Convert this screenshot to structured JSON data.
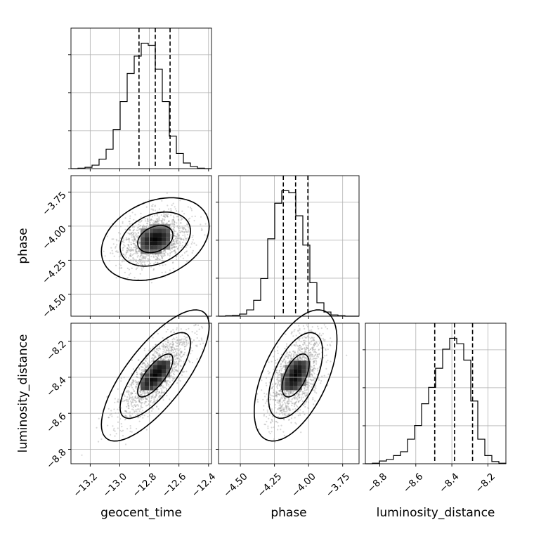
{
  "chart_data": {
    "type": "corner",
    "parameters": [
      "geocent_time",
      "phase",
      "luminosity_distance"
    ],
    "ranges": {
      "geocent_time": [
        -13.33,
        -12.38
      ],
      "phase": [
        -4.66,
        -3.63
      ],
      "luminosity_distance": [
        -8.88,
        -8.1
      ]
    },
    "ticks": {
      "geocent_time": [
        -13.2,
        -13.0,
        -12.8,
        -12.6,
        -12.4
      ],
      "phase": [
        -4.5,
        -4.25,
        -4.0,
        -3.75
      ],
      "luminosity_distance": [
        -8.8,
        -8.6,
        -8.4,
        -8.2
      ]
    },
    "tick_labels": {
      "geocent_time": [
        "−13.2",
        "−13.0",
        "−12.8",
        "−12.6",
        "−12.4"
      ],
      "phase": [
        "−4.50",
        "−4.25",
        "−4.00",
        "−3.75"
      ],
      "luminosity_distance": [
        "−8.8",
        "−8.6",
        "−8.4",
        "−8.2"
      ]
    },
    "quantiles": {
      "geocent_time": [
        -12.87,
        -12.76,
        -12.66
      ],
      "phase": [
        -4.185,
        -4.095,
        -4.005
      ],
      "luminosity_distance": [
        -8.495,
        -8.385,
        -8.285
      ]
    },
    "histograms": {
      "geocent_time": {
        "edges": [
          -13.33,
          -13.2825,
          -13.235,
          -13.1875,
          -13.14,
          -13.0925,
          -13.045,
          -12.9975,
          -12.95,
          -12.9025,
          -12.855,
          -12.8075,
          -12.76,
          -12.7125,
          -12.665,
          -12.6175,
          -12.57,
          -12.5225,
          -12.475,
          -12.4275,
          -12.38
        ],
        "counts": [
          0,
          1,
          3,
          8,
          22,
          45,
          90,
          155,
          220,
          260,
          290,
          285,
          230,
          155,
          75,
          35,
          13,
          5,
          1,
          0
        ]
      },
      "phase": {
        "edges": [
          -4.66,
          -4.6085,
          -4.557,
          -4.5055,
          -4.454,
          -4.4025,
          -4.351,
          -4.2995,
          -4.248,
          -4.1965,
          -4.145,
          -4.0935,
          -4.042,
          -3.9905,
          -3.939,
          -3.8875,
          -3.836,
          -3.7845,
          -3.733,
          -3.6815,
          -3.63
        ],
        "counts": [
          0,
          1,
          2,
          5,
          15,
          38,
          90,
          185,
          270,
          300,
          295,
          240,
          170,
          80,
          32,
          10,
          3,
          1,
          0,
          0
        ]
      },
      "luminosity_distance": {
        "edges": [
          -8.88,
          -8.841,
          -8.802,
          -8.763,
          -8.724,
          -8.685,
          -8.646,
          -8.607,
          -8.568,
          -8.529,
          -8.49,
          -8.451,
          -8.412,
          -8.373,
          -8.334,
          -8.295,
          -8.256,
          -8.217,
          -8.178,
          -8.139,
          -8.1
        ],
        "counts": [
          0,
          1,
          5,
          8,
          15,
          22,
          45,
          70,
          110,
          140,
          175,
          210,
          230,
          220,
          190,
          115,
          45,
          15,
          4,
          1
        ]
      }
    },
    "posterior_2d": {
      "phase_vs_geocent_time": {
        "mean": [
          -12.76,
          -4.095
        ],
        "sd": [
          0.12,
          0.1
        ],
        "rho": 0.3
      },
      "luminosity_distance_vs_geocent_time": {
        "mean": [
          -12.76,
          -8.39
        ],
        "sd": [
          0.12,
          0.12
        ],
        "rho": 0.75
      },
      "luminosity_distance_vs_phase": {
        "mean": [
          -4.095,
          -8.39
        ],
        "sd": [
          0.1,
          0.12
        ],
        "rho": 0.55
      }
    },
    "grid": true
  }
}
